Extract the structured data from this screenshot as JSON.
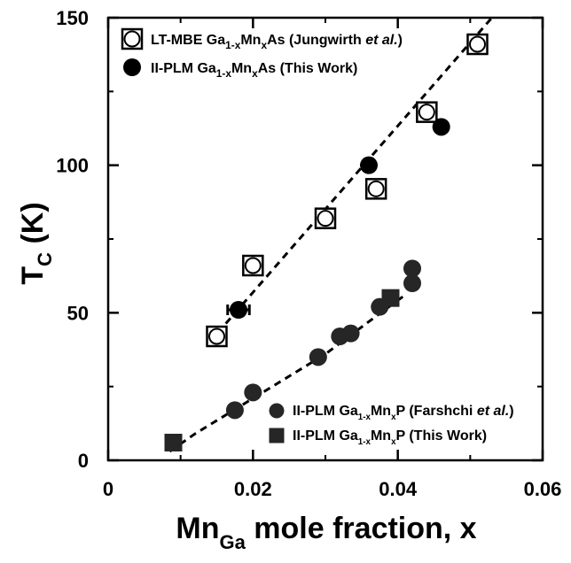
{
  "chart_data": {
    "type": "scatter",
    "title": "",
    "xlabel": "Mn_Ga mole fraction, x",
    "ylabel": "T_C (K)",
    "xlim": [
      0,
      0.06
    ],
    "ylim": [
      0,
      150
    ],
    "x_ticks": [
      "0",
      "0.02",
      "0.04",
      "0.06"
    ],
    "y_ticks": [
      "0",
      "50",
      "100",
      "150"
    ],
    "x_tick_values": [
      0,
      0.02,
      0.04,
      0.06
    ],
    "y_tick_values": [
      0,
      50,
      100,
      150
    ],
    "grid": false,
    "series": [
      {
        "name": "LT-MBE Ga1-xMnxAs (Jungwirth et al.)",
        "marker": "open-circle-in-square",
        "points": [
          {
            "x": 0.015,
            "y": 42
          },
          {
            "x": 0.02,
            "y": 66
          },
          {
            "x": 0.03,
            "y": 82
          },
          {
            "x": 0.037,
            "y": 92
          },
          {
            "x": 0.044,
            "y": 118
          },
          {
            "x": 0.051,
            "y": 141
          }
        ]
      },
      {
        "name": "II-PLM Ga1-xMnxAs (This Work)",
        "marker": "filled-circle",
        "points": [
          {
            "x": 0.018,
            "y": 51,
            "xerr": 0.0015
          },
          {
            "x": 0.036,
            "y": 100
          },
          {
            "x": 0.046,
            "y": 113
          }
        ]
      },
      {
        "name": "II-PLM Ga1-xMnxP (Farshchi et al.)",
        "marker": "filled-circle-gray",
        "points": [
          {
            "x": 0.0175,
            "y": 17
          },
          {
            "x": 0.02,
            "y": 23
          },
          {
            "x": 0.029,
            "y": 35
          },
          {
            "x": 0.032,
            "y": 42
          },
          {
            "x": 0.0335,
            "y": 43
          },
          {
            "x": 0.0375,
            "y": 52
          },
          {
            "x": 0.042,
            "y": 60
          },
          {
            "x": 0.042,
            "y": 65
          }
        ]
      },
      {
        "name": "II-PLM Ga1-xMnxP (This Work)",
        "marker": "filled-square",
        "points": [
          {
            "x": 0.009,
            "y": 6
          },
          {
            "x": 0.039,
            "y": 55
          }
        ]
      }
    ],
    "fit_lines": [
      {
        "for": "GaMnAs",
        "style": "dashed",
        "points": [
          [
            0.014,
            40
          ],
          [
            0.053,
            150
          ]
        ]
      },
      {
        "for": "GaMnP",
        "style": "dashed",
        "points": [
          [
            0.0085,
            3
          ],
          [
            0.012,
            9
          ],
          [
            0.018,
            18
          ],
          [
            0.024,
            27
          ],
          [
            0.03,
            36
          ],
          [
            0.036,
            47
          ],
          [
            0.041,
            56
          ]
        ]
      }
    ],
    "legends": [
      {
        "placement": "top-left",
        "entries": [
          {
            "marker": "open-circle-in-square",
            "main": "LT-MBE Ga",
            "sub1": "1-x",
            "mid": "Mn",
            "sub2": "x",
            "tail": "As (Jungwirth ",
            "ital": "et al.",
            "end": ")"
          },
          {
            "marker": "filled-circle",
            "main": "II-PLM Ga",
            "sub1": "1-x",
            "mid": "Mn",
            "sub2": "x",
            "tail": "As (This Work)",
            "ital": "",
            "end": ""
          }
        ]
      },
      {
        "placement": "bottom-right",
        "entries": [
          {
            "marker": "filled-circle-gray",
            "main": "II-PLM Ga",
            "sub1": "1-x",
            "mid": "Mn",
            "sub2": "x",
            "tail": "P (Farshchi ",
            "ital": "et al.",
            "end": ")"
          },
          {
            "marker": "filled-square",
            "main": "II-PLM Ga",
            "sub1": "1-x",
            "mid": "Mn",
            "sub2": "x",
            "tail": "P (This Work)",
            "ital": "",
            "end": ""
          }
        ]
      }
    ],
    "axis_title_parts": {
      "y_main": "T",
      "y_sub": "C",
      "y_rest": " (K)",
      "x_main": "Mn",
      "x_sub": "Ga",
      "x_rest": " mole fraction, x"
    }
  }
}
